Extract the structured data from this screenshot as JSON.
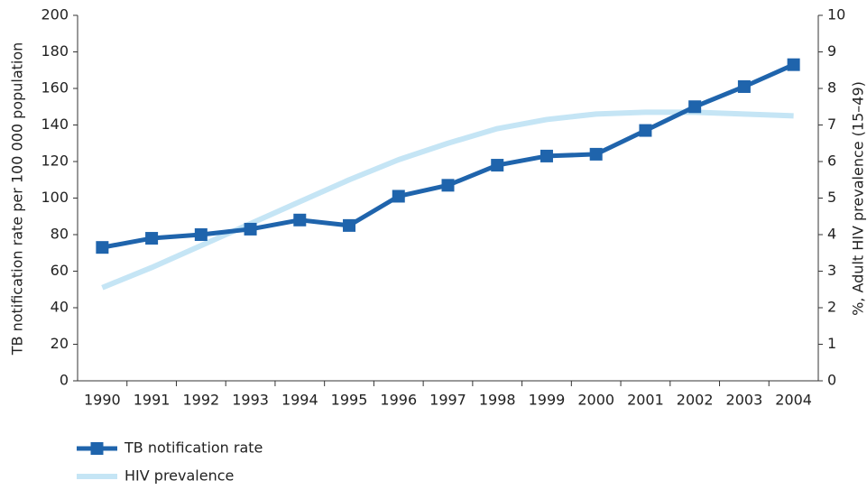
{
  "chart_data": {
    "type": "line",
    "categories": [
      "1990",
      "1991",
      "1992",
      "1993",
      "1994",
      "1995",
      "1996",
      "1997",
      "1998",
      "1999",
      "2000",
      "2001",
      "2002",
      "2003",
      "2004"
    ],
    "y_label": "TB notification rate per 100 000 population",
    "y2_label": "%, Adult HIV prevalence (15–49)",
    "ylim": [
      0,
      200
    ],
    "yticks": [
      0,
      20,
      40,
      60,
      80,
      100,
      120,
      140,
      160,
      180,
      200
    ],
    "y2lim": [
      0,
      10
    ],
    "y2ticks": [
      0,
      1,
      2,
      3,
      4,
      5,
      6,
      7,
      8,
      9,
      10
    ],
    "legend": "bottom-left",
    "series": [
      {
        "name": "TB notification rate",
        "color": "#1f64ac",
        "marker": "square",
        "values": [
          73,
          78,
          80,
          83,
          88,
          85,
          101,
          107,
          118,
          123,
          124,
          137,
          150,
          161,
          173
        ]
      },
      {
        "name": "HIV prevalence",
        "color": "#c5e5f5",
        "axis": "y2",
        "values": [
          2.55,
          3.1,
          3.7,
          4.3,
          4.9,
          5.5,
          6.05,
          6.5,
          6.9,
          7.15,
          7.3,
          7.35,
          7.35,
          7.3,
          7.25
        ]
      }
    ]
  }
}
